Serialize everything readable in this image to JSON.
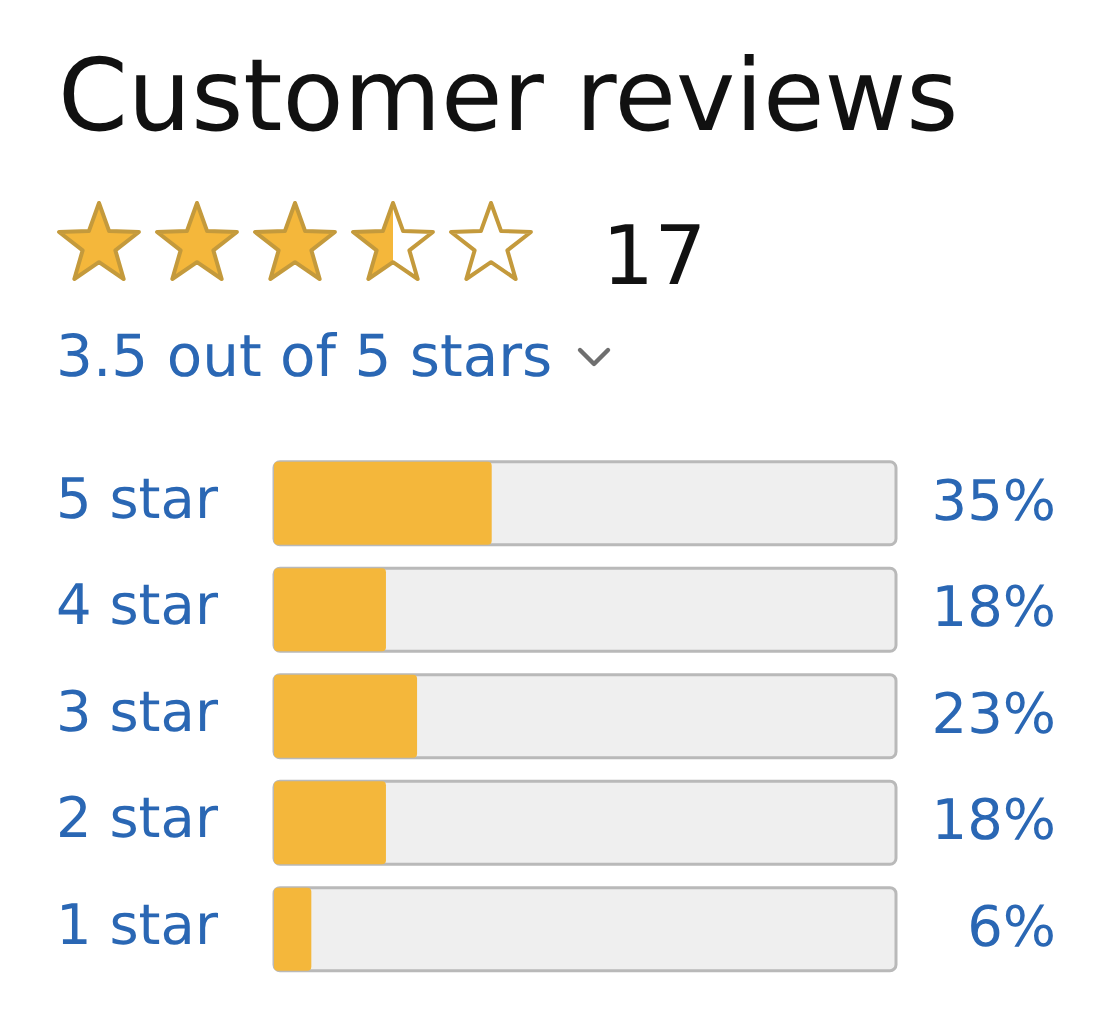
{
  "chart_data": {
    "type": "bar",
    "orientation": "horizontal",
    "title": "Customer reviews",
    "subtitle": "3.5 out of 5 stars",
    "annotations": [
      "17"
    ],
    "categories": [
      "5 star",
      "4 star",
      "3 star",
      "2 star",
      "1 star"
    ],
    "values": [
      35,
      18,
      23,
      18,
      6
    ],
    "value_labels": [
      "35%",
      "18%",
      "23%",
      "18%",
      "6%"
    ],
    "color": "#f4b73b",
    "tick_labels": "y",
    "grid": false,
    "legend": false
  }
}
